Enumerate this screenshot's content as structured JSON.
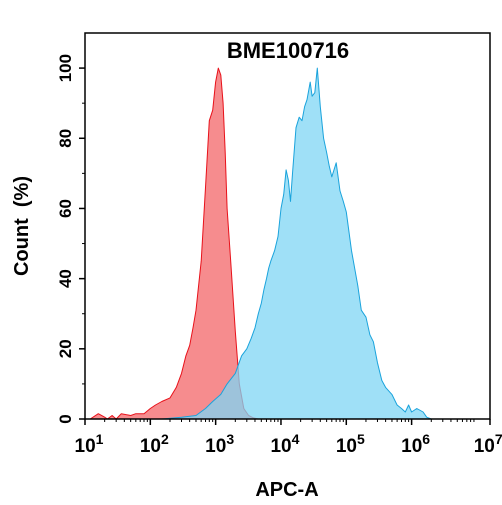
{
  "chart_data": {
    "type": "area",
    "title": "BME100716",
    "xlabel": "APC-A",
    "ylabel": "Count  (%)",
    "x_scale": "log10",
    "xlim": [
      10,
      15848932
    ],
    "ylim": [
      0,
      110
    ],
    "x_ticks": [
      {
        "base": "10",
        "exp": "1",
        "value": 10
      },
      {
        "base": "10",
        "exp": "2",
        "value": 100
      },
      {
        "base": "10",
        "exp": "3",
        "value": 1000
      },
      {
        "base": "10",
        "exp": "4",
        "value": 10000
      },
      {
        "base": "10",
        "exp": "5",
        "value": 100000
      },
      {
        "base": "10",
        "exp": "6",
        "value": 1000000
      },
      {
        "base": "10",
        "exp": "7.2",
        "value": 15848932
      }
    ],
    "y_ticks": [
      "0",
      "20",
      "40",
      "60",
      "80",
      "100"
    ],
    "y_tick_values": [
      0,
      20,
      40,
      60,
      80,
      100
    ],
    "grid": false,
    "series": [
      {
        "color": "#f4787a",
        "stroke": "#e8111a",
        "x": [
          12,
          16,
          20,
          22,
          26,
          30,
          36,
          50,
          60,
          80,
          100,
          120,
          150,
          200,
          250,
          300,
          350,
          400,
          450,
          500,
          600,
          700,
          800,
          900,
          1000,
          1100,
          1200,
          1300,
          1400,
          1500,
          1700,
          2000,
          2300,
          2700,
          3200,
          3800,
          4500
        ],
        "y": [
          0,
          1.5,
          0.5,
          0,
          1,
          0,
          1.5,
          1,
          1.5,
          1.5,
          3,
          4,
          5,
          6,
          9,
          13,
          18,
          21,
          26,
          31,
          45,
          66,
          85,
          88,
          96,
          100,
          98,
          90,
          76,
          60,
          45,
          25,
          10,
          3,
          1,
          0.3,
          0
        ]
      },
      {
        "color": "#7fd5f4",
        "stroke": "#1aa3dc",
        "x": [
          150,
          300,
          500,
          700,
          900,
          1200,
          1500,
          2000,
          2500,
          3000,
          3500,
          4000,
          4500,
          5000,
          5500,
          6000,
          6500,
          7000,
          8000,
          9000,
          10000,
          11000,
          12000,
          13000,
          14000,
          15000,
          17000,
          19000,
          21000,
          23000,
          25000,
          28000,
          30000,
          33000,
          36000,
          40000,
          45000,
          50000,
          55000,
          60000,
          70000,
          80000,
          90000,
          100000,
          120000,
          150000,
          170000,
          200000,
          230000,
          260000,
          300000,
          350000,
          400000,
          500000,
          600000,
          700000,
          800000,
          900000,
          1000000,
          1200000,
          1500000,
          1700000,
          2000000
        ],
        "y": [
          0,
          0.5,
          1,
          3,
          5,
          7,
          10,
          13,
          18,
          20,
          23,
          26,
          30,
          33,
          37,
          40,
          43,
          45,
          48,
          52,
          60,
          64,
          71,
          68,
          62,
          70,
          83,
          86,
          85,
          89,
          91,
          96,
          92,
          93,
          100,
          89,
          80,
          76,
          72,
          69,
          73,
          65,
          62,
          59,
          48,
          38,
          31,
          29,
          24,
          22,
          16,
          11,
          9,
          7,
          4,
          3,
          2,
          4,
          2,
          3,
          2,
          0.5,
          0
        ]
      }
    ]
  }
}
